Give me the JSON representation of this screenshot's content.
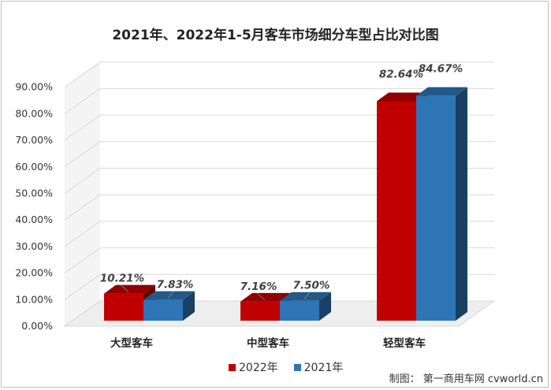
{
  "colors": {
    "series_2022": "#c00000",
    "series_2021": "#2e75b6"
  },
  "credit": "制图：  第一商用车网 cvworld.cn",
  "chart_data": {
    "type": "bar",
    "title": "2021年、2022年1-5月客车市场细分车型占比对比图",
    "categories": [
      "大型客车",
      "中型客车",
      "轻型客车"
    ],
    "series": [
      {
        "name": "2022年",
        "values": [
          10.21,
          7.16,
          82.64
        ],
        "labels": [
          "10.21%",
          "7.16%",
          "82.64%"
        ]
      },
      {
        "name": "2021年",
        "values": [
          7.83,
          7.5,
          84.67
        ],
        "labels": [
          "7.83%",
          "7.50%",
          "84.67%"
        ]
      }
    ],
    "ylim": [
      0,
      90
    ],
    "yticks": [
      "0.00%",
      "10.00%",
      "20.00%",
      "30.00%",
      "40.00%",
      "50.00%",
      "60.00%",
      "70.00%",
      "80.00%",
      "90.00%"
    ],
    "ytick_values": [
      0,
      10,
      20,
      30,
      40,
      50,
      60,
      70,
      80,
      90
    ],
    "grid": true,
    "legend": "bottom"
  }
}
